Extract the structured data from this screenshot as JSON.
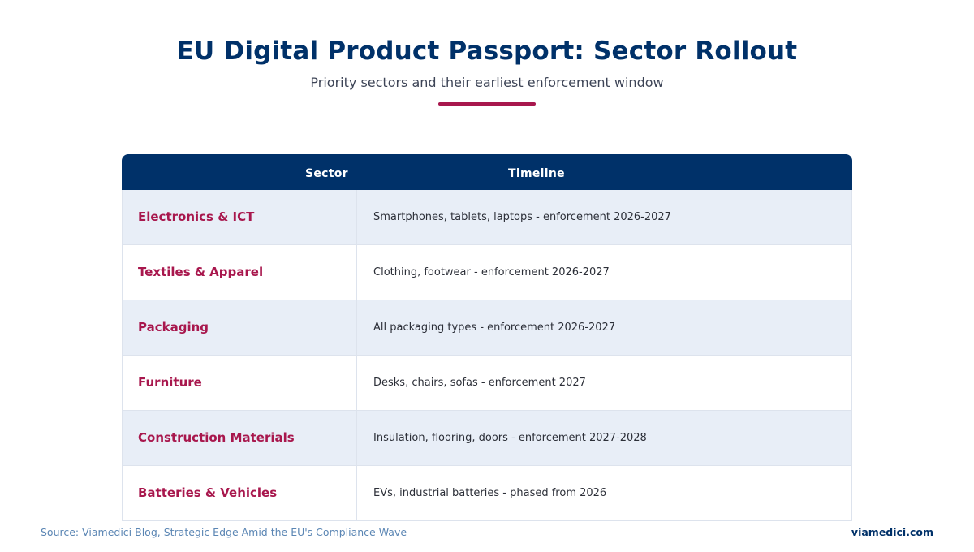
{
  "header": {
    "title": "EU Digital Product Passport: Sector Rollout",
    "subtitle": "Priority sectors and their earliest enforcement window"
  },
  "table": {
    "columns": [
      "Sector",
      "Timeline"
    ],
    "rows": [
      {
        "sector": "Electronics & ICT",
        "timeline": "Smartphones, tablets, laptops - enforcement 2026-2027"
      },
      {
        "sector": "Textiles & Apparel",
        "timeline": "Clothing, footwear - enforcement 2026-2027"
      },
      {
        "sector": "Packaging",
        "timeline": "All packaging types - enforcement 2026-2027"
      },
      {
        "sector": "Furniture",
        "timeline": "Desks, chairs, sofas - enforcement 2027"
      },
      {
        "sector": "Construction Materials",
        "timeline": "Insulation, flooring, doors - enforcement 2027-2028"
      },
      {
        "sector": "Batteries & Vehicles",
        "timeline": "EVs, industrial batteries - phased from 2026"
      }
    ]
  },
  "footer": {
    "source": "Source: Viamedici Blog, Strategic Edge Amid the EU's Compliance Wave",
    "brand": "viamedici.com"
  },
  "colors": {
    "primary_navy": "#003169",
    "accent_crimson": "#a8174d",
    "row_alt": "#e8eef7",
    "source_text": "#5b86b4"
  }
}
